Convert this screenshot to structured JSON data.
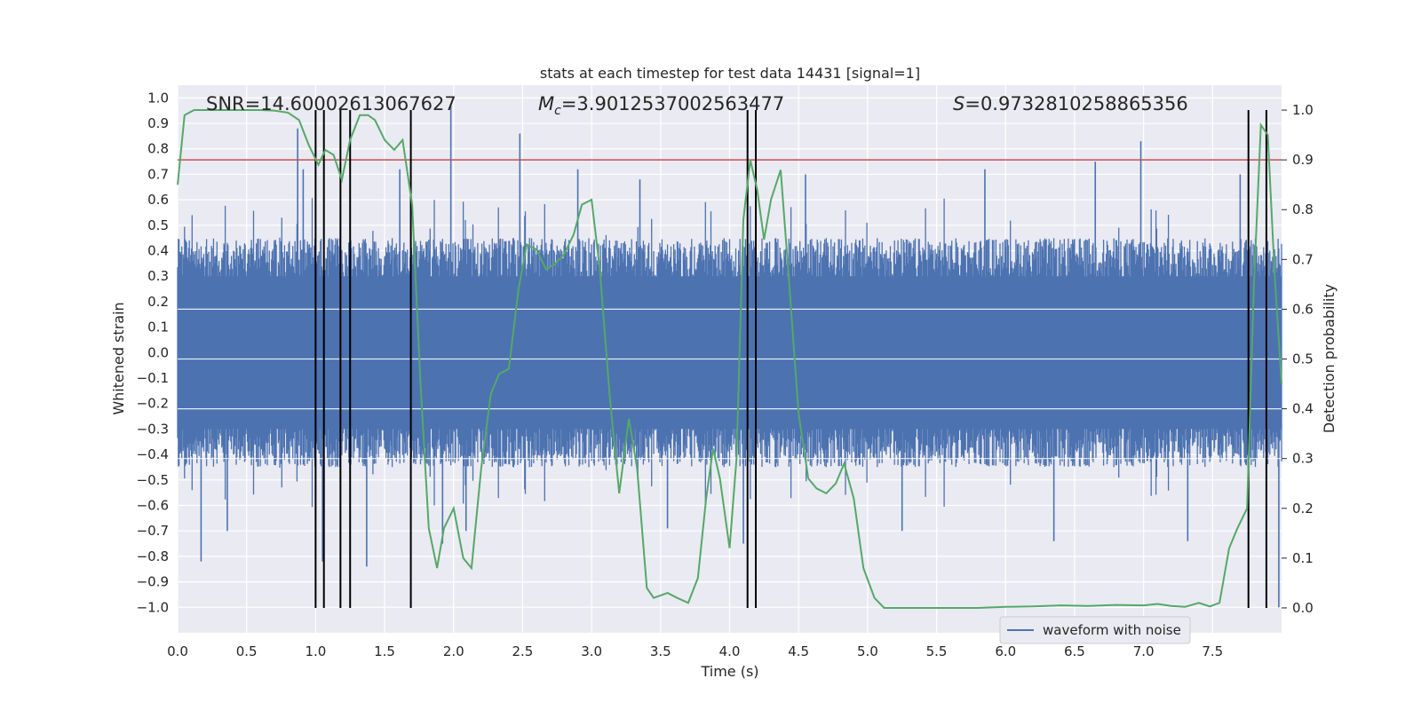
{
  "chart_data": {
    "type": "line",
    "title": "stats at each timestep for test data 14431 [signal=1]",
    "xlabel": "Time (s)",
    "ylabel_left": "Whitened strain",
    "ylabel_right": "Detection probability",
    "xlim": [
      0,
      8.0
    ],
    "ylim_left": [
      -1.1,
      1.05
    ],
    "ylim_right": [
      -0.05,
      1.05
    ],
    "x_ticks": [
      0.0,
      0.5,
      1.0,
      1.5,
      2.0,
      2.5,
      3.0,
      3.5,
      4.0,
      4.5,
      5.0,
      5.5,
      6.0,
      6.5,
      7.0,
      7.5
    ],
    "x_tick_labels": [
      "0.0",
      "0.5",
      "1.0",
      "1.5",
      "2.0",
      "2.5",
      "3.0",
      "3.5",
      "4.0",
      "4.5",
      "5.0",
      "5.5",
      "6.0",
      "6.5",
      "7.0",
      "7.5"
    ],
    "y_left_ticks": [
      1.0,
      0.9,
      0.8,
      0.7,
      0.6,
      0.5,
      0.4,
      0.3,
      0.2,
      0.1,
      0.0,
      -0.1,
      -0.2,
      -0.3,
      -0.4,
      -0.5,
      -0.6,
      -0.7,
      -0.8,
      -0.9,
      -1.0
    ],
    "y_left_tick_labels": [
      "1.0",
      "0.9",
      "0.8",
      "0.7",
      "0.6",
      "0.5",
      "0.4",
      "0.3",
      "0.2",
      "0.1",
      "0.0",
      "−0.1",
      "−0.2",
      "−0.3",
      "−0.4",
      "−0.5",
      "−0.6",
      "−0.7",
      "−0.8",
      "−0.9",
      "−1.0"
    ],
    "y_right_ticks": [
      1.0,
      0.9,
      0.8,
      0.7,
      0.6,
      0.5,
      0.4,
      0.3,
      0.2,
      0.1,
      0.0
    ],
    "y_right_tick_labels": [
      "1.0",
      "0.9",
      "0.8",
      "0.7",
      "0.6",
      "0.5",
      "0.4",
      "0.3",
      "0.2",
      "0.1",
      "0.0"
    ],
    "annotations": {
      "snr": "SNR=14.60002613067627",
      "mc_symbol": "M",
      "mc_subscript": "c",
      "mc_value": "=3.9012537002563477",
      "s_symbol": "S",
      "s_value": "=0.9732810258865356"
    },
    "threshold": 0.9,
    "detection_markers_x": [
      1.0,
      1.06,
      1.18,
      1.25,
      1.69,
      4.13,
      4.19,
      7.76,
      7.89
    ],
    "waveform": {
      "name": "waveform with noise",
      "color": "#4c72b0",
      "sample_spacing": 0.005,
      "core_band": 0.45,
      "spikes": [
        {
          "x": 0.87,
          "y": 0.88
        },
        {
          "x": 0.91,
          "y": 0.72
        },
        {
          "x": 1.05,
          "y": -0.82
        },
        {
          "x": 1.37,
          "y": -0.84
        },
        {
          "x": 1.61,
          "y": 0.72
        },
        {
          "x": 1.92,
          "y": -0.75
        },
        {
          "x": 1.98,
          "y": 0.97
        },
        {
          "x": 2.09,
          "y": -0.7
        },
        {
          "x": 2.48,
          "y": 0.86
        },
        {
          "x": 2.9,
          "y": 0.72
        },
        {
          "x": 3.35,
          "y": 0.68
        },
        {
          "x": 3.55,
          "y": -0.69
        },
        {
          "x": 4.1,
          "y": -0.75
        },
        {
          "x": 4.55,
          "y": 0.7
        },
        {
          "x": 5.25,
          "y": -0.7
        },
        {
          "x": 5.85,
          "y": 0.72
        },
        {
          "x": 6.35,
          "y": -0.74
        },
        {
          "x": 6.65,
          "y": 0.75
        },
        {
          "x": 6.98,
          "y": 0.83
        },
        {
          "x": 7.32,
          "y": -0.74
        },
        {
          "x": 7.7,
          "y": 0.7
        },
        {
          "x": 7.98,
          "y": -1.0
        },
        {
          "x": 0.17,
          "y": -0.82
        },
        {
          "x": 0.36,
          "y": -0.7
        }
      ]
    },
    "detection_probability": {
      "color": "#55a868",
      "x": [
        0.0,
        0.05,
        0.12,
        0.2,
        0.3,
        0.4,
        0.5,
        0.6,
        0.7,
        0.8,
        0.88,
        0.95,
        1.02,
        1.07,
        1.13,
        1.19,
        1.25,
        1.32,
        1.38,
        1.43,
        1.5,
        1.57,
        1.63,
        1.7,
        1.76,
        1.82,
        1.88,
        1.93,
        2.0,
        2.07,
        2.13,
        2.2,
        2.27,
        2.33,
        2.4,
        2.47,
        2.53,
        2.6,
        2.67,
        2.73,
        2.8,
        2.87,
        2.93,
        3.0,
        3.06,
        3.13,
        3.2,
        3.27,
        3.33,
        3.4,
        3.45,
        3.5,
        3.55,
        3.62,
        3.7,
        3.77,
        3.83,
        3.88,
        3.93,
        4.0,
        4.05,
        4.1,
        4.15,
        4.2,
        4.25,
        4.3,
        4.37,
        4.43,
        4.5,
        4.57,
        4.63,
        4.7,
        4.77,
        4.83,
        4.9,
        4.97,
        5.05,
        5.12,
        5.2,
        5.3,
        5.4,
        5.6,
        5.8,
        6.0,
        6.2,
        6.4,
        6.6,
        6.8,
        7.0,
        7.1,
        7.2,
        7.3,
        7.4,
        7.48,
        7.55,
        7.62,
        7.68,
        7.75,
        7.8,
        7.85,
        7.9,
        7.95,
        8.0
      ],
      "y": [
        0.85,
        0.99,
        1.0,
        1.0,
        1.0,
        1.0,
        1.0,
        1.0,
        0.999,
        0.995,
        0.98,
        0.93,
        0.89,
        0.92,
        0.91,
        0.86,
        0.94,
        0.99,
        0.99,
        0.98,
        0.94,
        0.92,
        0.94,
        0.81,
        0.45,
        0.16,
        0.08,
        0.16,
        0.2,
        0.1,
        0.08,
        0.28,
        0.43,
        0.47,
        0.48,
        0.64,
        0.73,
        0.72,
        0.68,
        0.69,
        0.71,
        0.75,
        0.81,
        0.82,
        0.68,
        0.43,
        0.23,
        0.38,
        0.28,
        0.04,
        0.02,
        0.025,
        0.03,
        0.02,
        0.01,
        0.06,
        0.22,
        0.32,
        0.26,
        0.12,
        0.3,
        0.78,
        0.9,
        0.84,
        0.74,
        0.82,
        0.88,
        0.66,
        0.39,
        0.26,
        0.24,
        0.23,
        0.25,
        0.29,
        0.22,
        0.08,
        0.02,
        0.0,
        0.0,
        0.0,
        0.0,
        0.0,
        0.0,
        0.002,
        0.003,
        0.005,
        0.004,
        0.006,
        0.005,
        0.008,
        0.004,
        0.002,
        0.01,
        0.003,
        0.01,
        0.12,
        0.16,
        0.2,
        0.65,
        0.97,
        0.95,
        0.67,
        0.45
      ]
    },
    "legend": {
      "label": "waveform with noise",
      "position": "lower-right"
    }
  },
  "colors": {
    "plot_bg": "#eaeaf2",
    "grid": "#ffffff",
    "threshold": "#c44e52",
    "marker": "#000000"
  }
}
